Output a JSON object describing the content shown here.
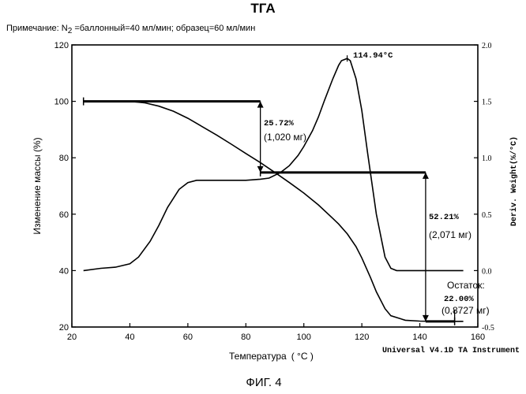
{
  "chart_data": {
    "type": "line",
    "title": "ТГА",
    "note": {
      "prefix": "Примечание: N",
      "subscript": "2",
      "suffix": " =баллонный=40 мл/мин; образец=60 мл/мин"
    },
    "xlabel": "Температура",
    "xlabel_unit": "( °C )",
    "ylabel": "Изменение массы (%)",
    "y2label": "Deriv. Weight(%/°C)",
    "xlim": [
      20,
      160
    ],
    "ylim": [
      20,
      120
    ],
    "y2lim": [
      -0.5,
      2.0
    ],
    "x_ticks": [
      "20",
      "40",
      "60",
      "80",
      "100",
      "120",
      "140",
      "160"
    ],
    "y_ticks": [
      "20",
      "40",
      "60",
      "80",
      "100",
      "120"
    ],
    "y2_ticks": [
      "-0.5",
      "0.0",
      "0.5",
      "1.0",
      "1.5",
      "2.0"
    ],
    "series": [
      {
        "axis": "left",
        "x": [
          24,
          30,
          35,
          40,
          45,
          50,
          55,
          60,
          65,
          70,
          75,
          80,
          85,
          90,
          95,
          100,
          105,
          110,
          112,
          115,
          118,
          120,
          123,
          125,
          128,
          130,
          135,
          140,
          145,
          150,
          155
        ],
        "y": [
          100,
          100,
          100,
          100,
          99.5,
          98.3,
          96.5,
          94,
          91,
          88,
          84.8,
          81.5,
          78.3,
          74.8,
          71.2,
          67.5,
          63.3,
          58.5,
          56.5,
          53,
          48.5,
          44.5,
          37.5,
          32.5,
          26.5,
          24,
          22.4,
          22.1,
          22,
          22,
          22
        ]
      },
      {
        "axis": "right",
        "x": [
          24,
          30,
          35,
          40,
          43,
          47,
          50,
          53,
          57,
          60,
          63,
          65,
          70,
          75,
          80,
          85,
          88,
          92,
          95,
          98,
          100,
          103,
          105,
          107,
          110,
          112,
          113,
          114.94,
          116,
          118,
          120,
          122,
          125,
          128,
          130,
          132,
          135,
          140,
          145,
          150,
          155
        ],
        "y": [
          0,
          0.02,
          0.03,
          0.06,
          0.12,
          0.26,
          0.4,
          0.56,
          0.72,
          0.78,
          0.8,
          0.8,
          0.8,
          0.8,
          0.8,
          0.81,
          0.82,
          0.87,
          0.93,
          1.02,
          1.1,
          1.24,
          1.36,
          1.5,
          1.7,
          1.82,
          1.86,
          1.88,
          1.86,
          1.7,
          1.42,
          1.04,
          0.5,
          0.12,
          0.02,
          0,
          0,
          0,
          0,
          0,
          0
        ]
      }
    ],
    "annotations": {
      "peak": "114.94°C",
      "step1_pct": "25.72%",
      "step1_mass": "(1,020 мг)",
      "step2_pct": "52.21%",
      "step2_mass": "(2,071 мг)",
      "residue_label": "Остаток:",
      "residue_pct": "22.00%",
      "residue_mass": "(0,8727 мг)"
    },
    "steps": {
      "step1": {
        "x": 85,
        "y_from": 100,
        "y_to": 74.8,
        "line_from_x": 24
      },
      "step2": {
        "x": 142,
        "y_from": 74.8,
        "y_to": 22,
        "line_from_x": 85
      },
      "residue": {
        "x": 152,
        "y": 22
      }
    },
    "instrument": "Universal V4.1D TA Instrument",
    "figure_label": "ФИГ. 4"
  }
}
